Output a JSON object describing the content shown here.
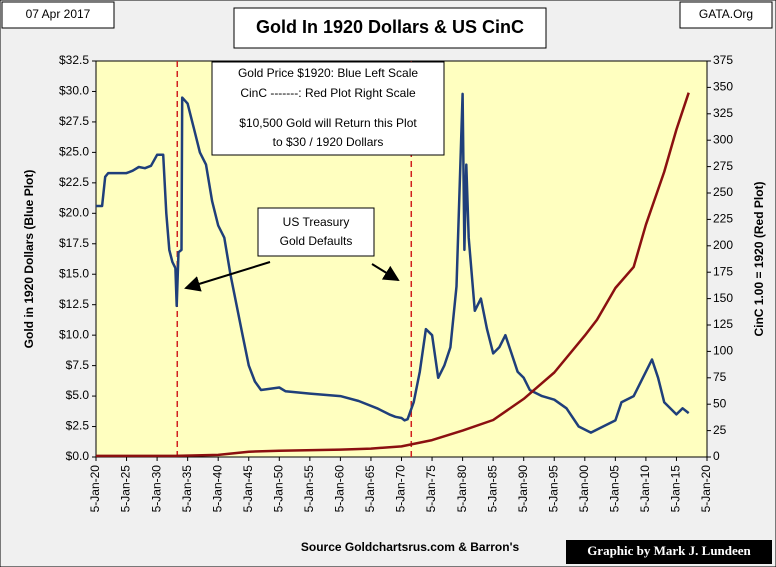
{
  "chart_data": {
    "type": "line",
    "title": "Gold In 1920 Dollars & US CinC",
    "date": "07 Apr 2017",
    "site": "GATA.Org",
    "ylabel": "Gold in  1920 Dollars (Blue Plot)",
    "y2label": "CinC  1.00 = 1920 (Red Plot)",
    "source": "Source  Goldchartsrus.com & Barron's",
    "credit": "Graphic by Mark J. Lundeen",
    "legend_lines": [
      "Gold Price $1920: Blue Left Scale",
      "CinC -------:  Red Plot Right Scale",
      "$10,500 Gold will Return this Plot",
      "to $30 / 1920 Dollars"
    ],
    "annotation_lines": [
      "US Treasury",
      "Gold Defaults"
    ],
    "vlines": [
      1933.3,
      1971.6
    ],
    "xlim": [
      1920,
      2020
    ],
    "xticks": [
      {
        "value": 1920,
        "label": "5-Jan-20"
      },
      {
        "value": 1925,
        "label": "5-Jan-25"
      },
      {
        "value": 1930,
        "label": "5-Jan-30"
      },
      {
        "value": 1935,
        "label": "5-Jan-35"
      },
      {
        "value": 1940,
        "label": "5-Jan-40"
      },
      {
        "value": 1945,
        "label": "5-Jan-45"
      },
      {
        "value": 1950,
        "label": "5-Jan-50"
      },
      {
        "value": 1955,
        "label": "5-Jan-55"
      },
      {
        "value": 1960,
        "label": "5-Jan-60"
      },
      {
        "value": 1965,
        "label": "5-Jan-65"
      },
      {
        "value": 1970,
        "label": "5-Jan-70"
      },
      {
        "value": 1975,
        "label": "5-Jan-75"
      },
      {
        "value": 1980,
        "label": "5-Jan-80"
      },
      {
        "value": 1985,
        "label": "5-Jan-85"
      },
      {
        "value": 1990,
        "label": "5-Jan-90"
      },
      {
        "value": 1995,
        "label": "5-Jan-95"
      },
      {
        "value": 2000,
        "label": "5-Jan-00"
      },
      {
        "value": 2005,
        "label": "5-Jan-05"
      },
      {
        "value": 2010,
        "label": "5-Jan-10"
      },
      {
        "value": 2015,
        "label": "5-Jan-15"
      },
      {
        "value": 2020,
        "label": "5-Jan-20"
      }
    ],
    "ylim": [
      0,
      32.5
    ],
    "yticks": [
      {
        "value": 0,
        "label": "$0.0"
      },
      {
        "value": 2.5,
        "label": "$2.5"
      },
      {
        "value": 5,
        "label": "$5.0"
      },
      {
        "value": 7.5,
        "label": "$7.5"
      },
      {
        "value": 10,
        "label": "$10.0"
      },
      {
        "value": 12.5,
        "label": "$12.5"
      },
      {
        "value": 15,
        "label": "$15.0"
      },
      {
        "value": 17.5,
        "label": "$17.5"
      },
      {
        "value": 20,
        "label": "$20.0"
      },
      {
        "value": 22.5,
        "label": "$22.5"
      },
      {
        "value": 25,
        "label": "$25.0"
      },
      {
        "value": 27.5,
        "label": "$27.5"
      },
      {
        "value": 30,
        "label": "$30.0"
      },
      {
        "value": 32.5,
        "label": "$32.5"
      }
    ],
    "y2lim": [
      0,
      375
    ],
    "y2ticks": [
      0,
      25,
      50,
      75,
      100,
      125,
      150,
      175,
      200,
      225,
      250,
      275,
      300,
      325,
      350,
      375
    ],
    "series": [
      {
        "color": "#1f3f7a",
        "x": [
          1920,
          1921,
          1921.5,
          1922,
          1925,
          1926,
          1927,
          1928,
          1929,
          1930,
          1931,
          1931.5,
          1932,
          1932.5,
          1933,
          1933.2,
          1933.5,
          1934,
          1934.1,
          1935,
          1936,
          1937,
          1938,
          1939,
          1940,
          1941,
          1942,
          1943,
          1944,
          1945,
          1946,
          1947,
          1950,
          1951,
          1955,
          1960,
          1963,
          1966,
          1968,
          1969,
          1970,
          1970.5,
          1971,
          1972,
          1973,
          1974,
          1975,
          1976,
          1977,
          1978,
          1979,
          1980,
          1980.3,
          1980.6,
          1981,
          1982,
          1983,
          1984,
          1985,
          1986,
          1987,
          1988,
          1989,
          1990,
          1991,
          1993,
          1995,
          1997,
          1999,
          2001,
          2003,
          2005,
          2006,
          2008,
          2011,
          2012,
          2013,
          2015,
          2016,
          2017
        ],
        "values": [
          20.6,
          20.6,
          23,
          23.3,
          23.3,
          23.5,
          23.8,
          23.7,
          23.9,
          24.8,
          24.8,
          20,
          17,
          16,
          15.5,
          12.4,
          16.8,
          17,
          29.5,
          29,
          27,
          25,
          24,
          21,
          19,
          18,
          15,
          12.5,
          10,
          7.5,
          6.2,
          5.5,
          5.7,
          5.4,
          5.2,
          5.0,
          4.6,
          4.0,
          3.5,
          3.3,
          3.2,
          3.0,
          3.1,
          4.5,
          7,
          10.5,
          10,
          6.5,
          7.5,
          9,
          14,
          29.8,
          17,
          24,
          18,
          12,
          13,
          10.5,
          8.5,
          9,
          10,
          8.5,
          7,
          6.5,
          5.5,
          5,
          4.7,
          4,
          2.5,
          2.0,
          2.5,
          3.0,
          4.5,
          5,
          8,
          6.5,
          4.5,
          3.5,
          4,
          3.6
        ]
      },
      {
        "color": "#8b1010",
        "axis": "y2",
        "x": [
          1920,
          1933,
          1940,
          1945,
          1950,
          1960,
          1965,
          1970,
          1975,
          1980,
          1985,
          1990,
          1995,
          2000,
          2002,
          2005,
          2008,
          2010,
          2013,
          2015,
          2017
        ],
        "values": [
          1,
          1,
          2,
          5,
          6,
          7,
          8,
          10,
          16,
          25,
          35,
          55,
          80,
          115,
          130,
          160,
          180,
          220,
          270,
          310,
          345
        ]
      }
    ]
  }
}
